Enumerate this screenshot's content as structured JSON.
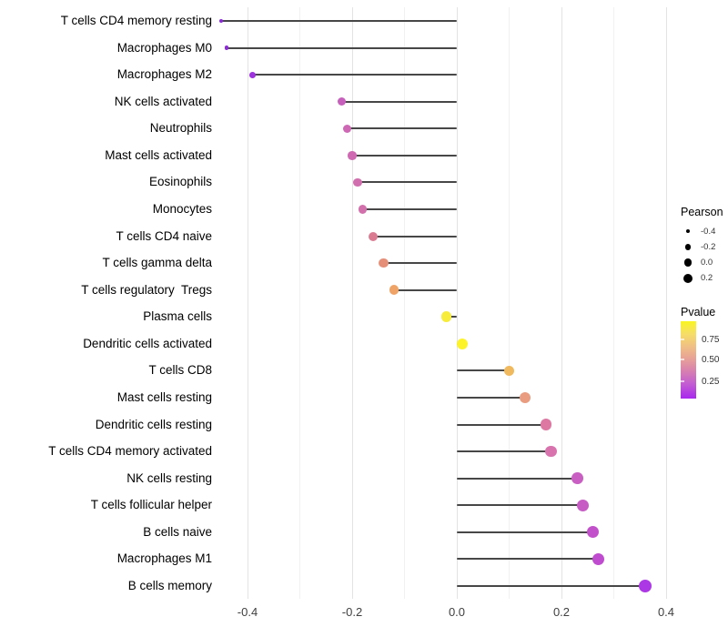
{
  "chart_data": {
    "type": "lollipop",
    "orientation": "horizontal",
    "title": "",
    "xlabel": "",
    "ylabel": "",
    "categories": [
      "T cells CD4 memory resting",
      "Macrophages M0",
      "Macrophages M2",
      "NK cells activated",
      "Neutrophils",
      "Mast cells activated",
      "Eosinophils",
      "Monocytes",
      "T cells CD4 naive",
      "T cells gamma delta",
      "T cells regulatory  Tregs",
      "Plasma cells",
      "Dendritic cells activated",
      "T cells CD8",
      "Mast cells resting",
      "Dendritic cells resting",
      "T cells CD4 memory activated",
      "NK cells resting",
      "T cells follicular helper",
      "B cells naive",
      "Macrophages M1",
      "B cells memory"
    ],
    "series": [
      {
        "name": "Pearson",
        "values": [
          -0.45,
          -0.44,
          -0.39,
          -0.22,
          -0.21,
          -0.2,
          -0.19,
          -0.18,
          -0.16,
          -0.14,
          -0.12,
          -0.02,
          0.01,
          0.1,
          0.13,
          0.17,
          0.18,
          0.23,
          0.24,
          0.26,
          0.27,
          0.36
        ]
      }
    ],
    "pvalues_estimated_from_color": [
      0.07,
      0.07,
      0.1,
      0.3,
      0.32,
      0.33,
      0.34,
      0.35,
      0.45,
      0.55,
      0.62,
      0.88,
      0.9,
      0.68,
      0.58,
      0.42,
      0.38,
      0.28,
      0.27,
      0.24,
      0.22,
      0.12
    ],
    "point_colors": [
      "#8C27DC",
      "#8E29DC",
      "#9D32DE",
      "#C75FBC",
      "#CE68B4",
      "#CF6AB2",
      "#D16EAE",
      "#D270AC",
      "#DA7B92",
      "#E58F78",
      "#EFA366",
      "#F7EC3A",
      "#FCF32B",
      "#F0B95E",
      "#EA9C80",
      "#DC78A2",
      "#D873AE",
      "#C95FC2",
      "#C75CC5",
      "#C250CB",
      "#BF4BCE",
      "#AC38E5"
    ],
    "point_radius_px": [
      2.0,
      2.2,
      3.4,
      4.7,
      4.7,
      4.7,
      4.8,
      4.8,
      5.0,
      5.2,
      5.3,
      5.9,
      6.0,
      5.8,
      6.0,
      6.2,
      6.2,
      6.4,
      6.5,
      6.6,
      6.7,
      7.2
    ],
    "x_axis": {
      "tick_values": [
        -0.4,
        -0.2,
        0.0,
        0.2,
        0.4
      ],
      "tick_labels": [
        "-0.4",
        "-0.2",
        "0.0",
        "0.2",
        "0.4"
      ],
      "grid_values": [
        -0.4,
        -0.3,
        -0.2,
        -0.1,
        0.0,
        0.1,
        0.2,
        0.3,
        0.4
      ],
      "xlim": [
        -0.49,
        0.4
      ]
    },
    "grid": true,
    "legend_position": "right",
    "stem_color": "#474747",
    "legend": {
      "size": {
        "title": "Pearson",
        "items": [
          {
            "label": "-0.4",
            "r": 2.2
          },
          {
            "label": "-0.2",
            "r": 3.3
          },
          {
            "label": "0.0",
            "r": 4.3
          },
          {
            "label": "0.2",
            "r": 5.0
          }
        ]
      },
      "color": {
        "title": "Pvalue",
        "labels": [
          "0.75",
          "0.50",
          "0.25"
        ],
        "gradient_top_color": "#F9F521",
        "gradient_bottom_color": "#A928EE"
      }
    }
  }
}
